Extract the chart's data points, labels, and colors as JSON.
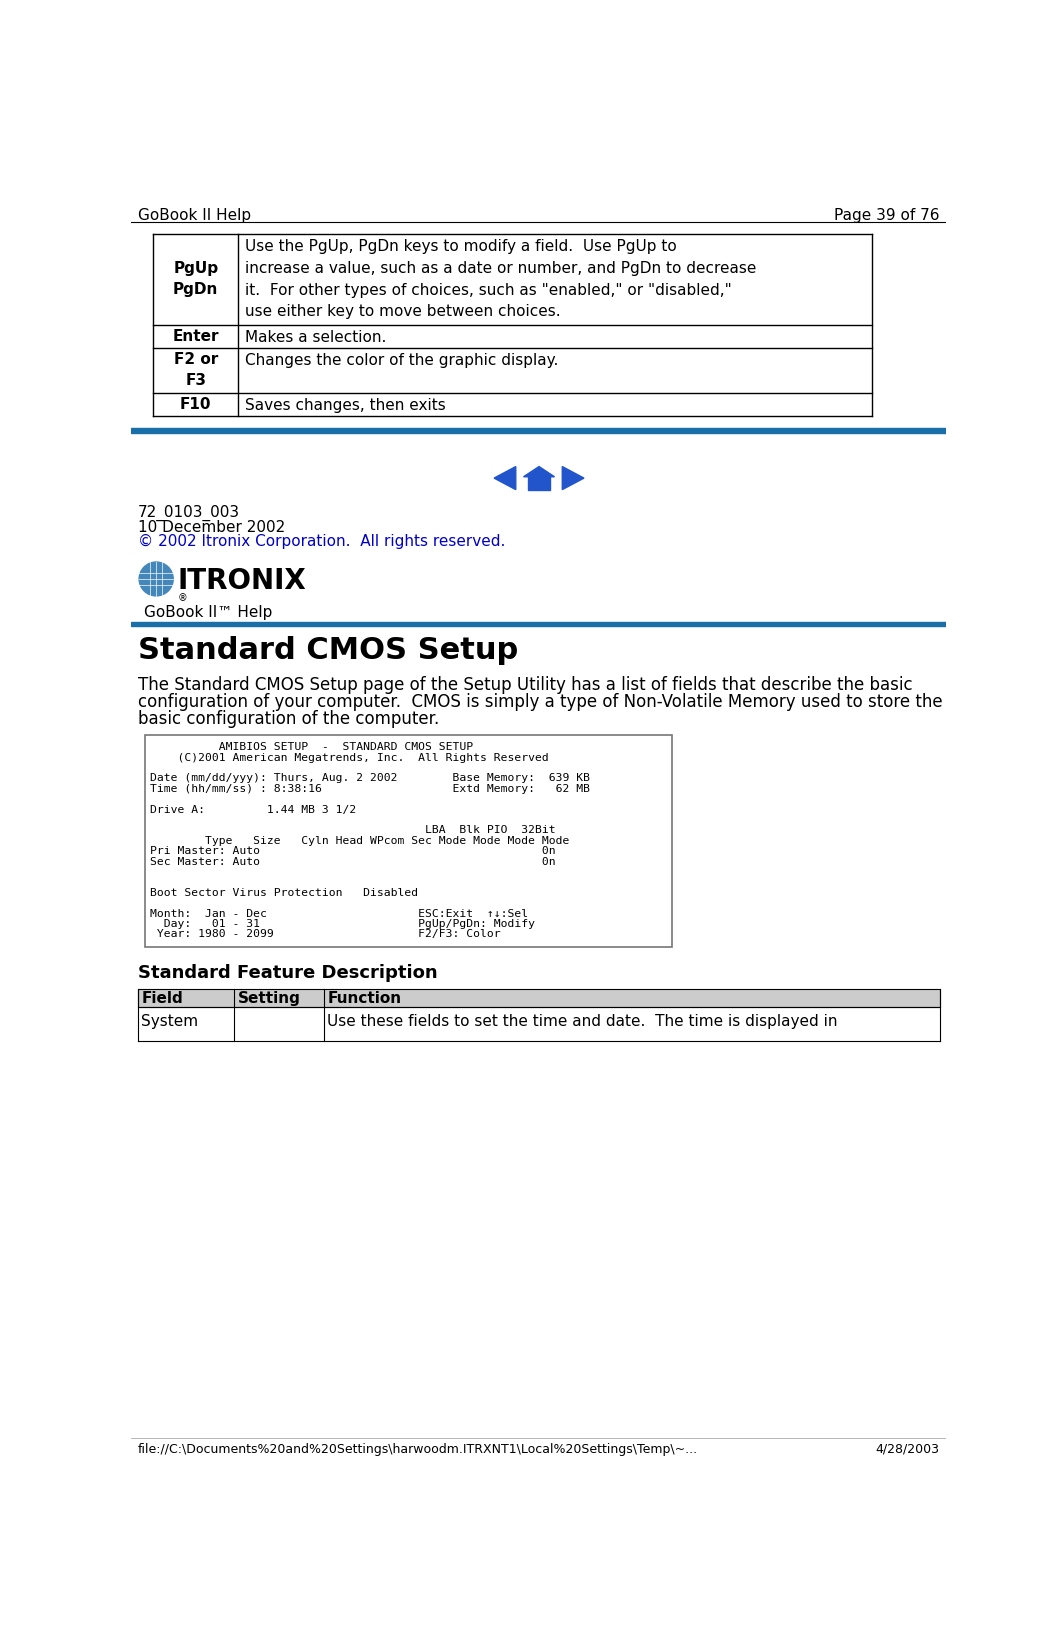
{
  "bg_color": "#ffffff",
  "header_left": "GoBook II Help",
  "header_right": "Page 39 of 76",
  "top_table_rows": [
    {
      "key": "PgUp\nPgDn",
      "value": "Use the PgUp, PgDn keys to modify a field.  Use PgUp to\nincrease a value, such as a date or number, and PgDn to decrease\nit.  For other types of choices, such as \"enabled,\" or \"disabled,\"\nuse either key to move between choices."
    },
    {
      "key": "Enter",
      "value": "Makes a selection."
    },
    {
      "key": "F2 or\nF3",
      "value": "Changes the color of the graphic display."
    },
    {
      "key": "F10",
      "value": "Saves changes, then exits"
    }
  ],
  "blue_bar_color": "#1a6fa8",
  "nav_arrow_color": "#2255cc",
  "meta_line1": "72_0103_003",
  "meta_line2": "10 December 2002",
  "meta_line3": "© 2002 Itronix Corporation.  All rights reserved.",
  "meta_line3_color": "#0000cc",
  "gobook_label": "GoBook II™ Help",
  "section_title": "Standard CMOS Setup",
  "section_body_lines": [
    "The Standard CMOS Setup page of the Setup Utility has a list of fields that describe the basic",
    "configuration of your computer.  CMOS is simply a type of Non-Volatile Memory used to store the",
    "basic configuration of the computer."
  ],
  "bios_screen_lines": [
    "          AMIBIOS SETUP  -  STANDARD CMOS SETUP",
    "    (C)2001 American Megatrends, Inc.  All Rights Reserved",
    "",
    "Date (mm/dd/yyy): Thurs, Aug. 2 2002        Base Memory:  639 KB",
    "Time (hh/mm/ss) : 8:38:16                   Extd Memory:   62 MB",
    "",
    "Drive A:         1.44 MB 3 1/2",
    "",
    "                                        LBA  Blk PIO  32Bit",
    "        Type   Size   Cyln Head WPcom Sec Mode Mode Mode Mode",
    "Pri Master: Auto                                         0n",
    "Sec Master: Auto                                         0n",
    "",
    "",
    "Boot Sector Virus Protection   Disabled",
    "",
    "Month:  Jan - Dec                      ESC:Exit  ↑↓:Sel",
    "  Day:   01 - 31                       PgUp/PgDn: Modify",
    " Year: 1980 - 2099                     F2/F3: Color"
  ],
  "standard_feature_title": "Standard Feature Description",
  "bottom_table_headers": [
    "Field",
    "Setting",
    "Function"
  ],
  "bottom_table_row": [
    "System",
    "",
    "Use these fields to set the time and date.  The time is displayed in"
  ],
  "footer_left": "file://C:\\Documents%20and%20Settings\\harwoodm.ITRXNT1\\Local%20Settings\\Temp\\~...",
  "footer_right": "4/28/2003"
}
